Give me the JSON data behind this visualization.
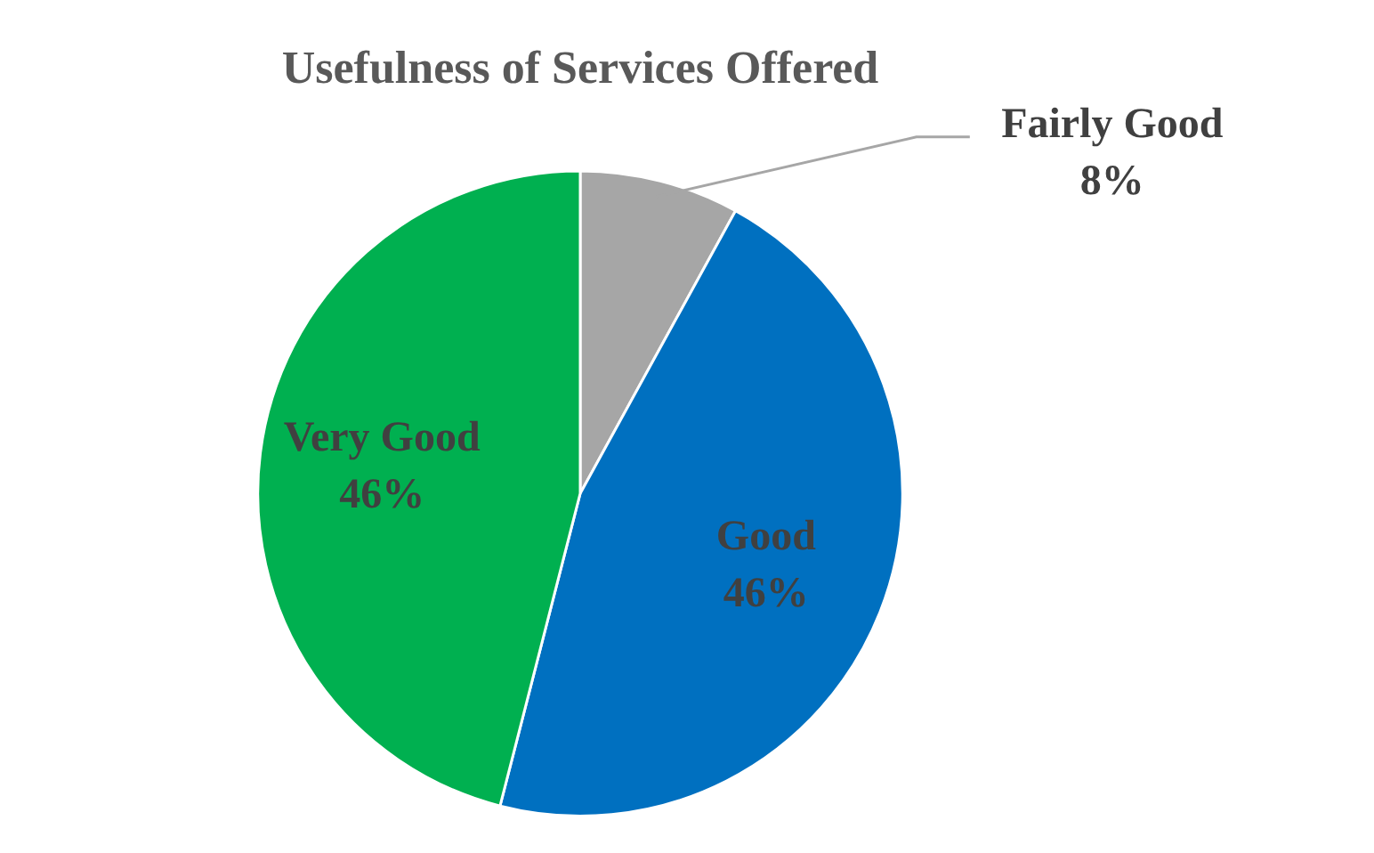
{
  "chart_data": {
    "type": "pie",
    "title": "Usefulness of Services Offered",
    "categories": [
      "Fairly Good",
      "Good",
      "Very Good"
    ],
    "values": [
      8,
      46,
      46
    ],
    "colors": [
      "#a6a6a6",
      "#0070c0",
      "#00b050"
    ],
    "value_labels": [
      "8%",
      "46%",
      "46%"
    ],
    "legend": false
  }
}
